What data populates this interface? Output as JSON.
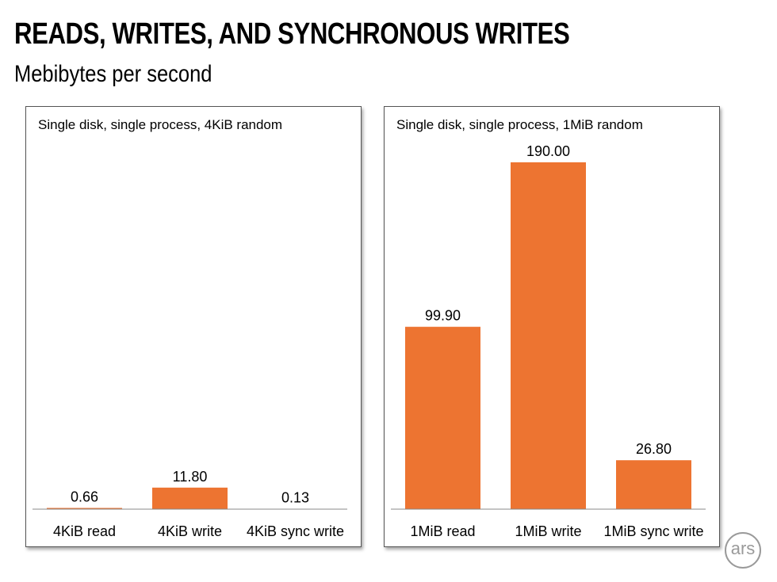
{
  "title": "READS, WRITES, AND SYNCHRONOUS WRITES",
  "subtitle": "Mebibytes per second",
  "logo": "ars",
  "colors": {
    "bar": "#ED7431",
    "axis": "#888888"
  },
  "chart_data": [
    {
      "type": "bar",
      "title": "Single disk, single process, 4KiB random",
      "categories": [
        "4KiB read",
        "4KiB write",
        "4KiB sync write"
      ],
      "values": [
        0.66,
        11.8,
        0.13
      ],
      "value_labels": [
        "0.66",
        "11.80",
        "0.13"
      ],
      "ylim": [
        0,
        190
      ],
      "grid": false
    },
    {
      "type": "bar",
      "title": "Single disk, single process, 1MiB random",
      "categories": [
        "1MiB read",
        "1MiB write",
        "1MiB sync write"
      ],
      "values": [
        99.9,
        190.0,
        26.8
      ],
      "value_labels": [
        "99.90",
        "190.00",
        "26.80"
      ],
      "ylim": [
        0,
        190
      ],
      "grid": false
    }
  ]
}
